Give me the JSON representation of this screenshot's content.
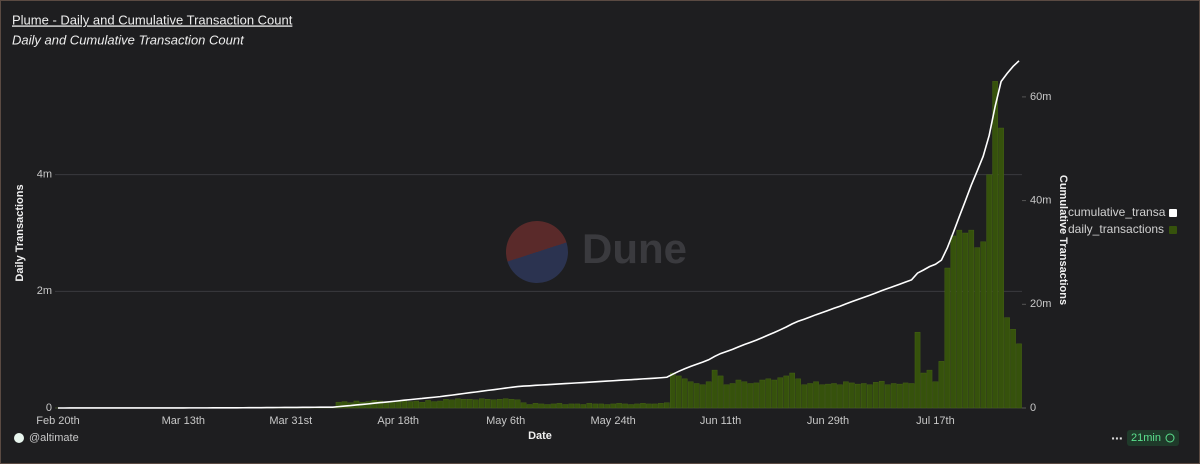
{
  "chart_data": {
    "type": "bar",
    "title": "Plume - Daily and Cumulative Transaction Count",
    "subtitle": "Daily and Cumulative Transaction Count",
    "x_label": "Date",
    "y_label": "Daily Transactions",
    "y2_label": "Cumulative Transactions",
    "watermark": "Dune",
    "categories": [
      "Feb 20th",
      null,
      null,
      null,
      null,
      null,
      null,
      null,
      null,
      null,
      null,
      null,
      null,
      null,
      null,
      null,
      null,
      null,
      null,
      null,
      null,
      "Mar 13th",
      null,
      null,
      null,
      null,
      null,
      null,
      null,
      null,
      null,
      null,
      null,
      null,
      null,
      null,
      null,
      null,
      null,
      "Mar 31st",
      null,
      null,
      null,
      null,
      null,
      null,
      null,
      null,
      null,
      null,
      null,
      null,
      null,
      null,
      null,
      null,
      null,
      "Apr 18th",
      null,
      null,
      null,
      null,
      null,
      null,
      null,
      null,
      null,
      null,
      null,
      null,
      null,
      null,
      null,
      null,
      null,
      "May 6th",
      null,
      null,
      null,
      null,
      null,
      null,
      null,
      null,
      null,
      null,
      null,
      null,
      null,
      null,
      null,
      null,
      null,
      "May 24th",
      null,
      null,
      null,
      null,
      null,
      null,
      null,
      null,
      null,
      null,
      null,
      null,
      null,
      null,
      null,
      null,
      null,
      "Jun 11th",
      null,
      null,
      null,
      null,
      null,
      null,
      null,
      null,
      null,
      null,
      null,
      null,
      null,
      null,
      null,
      null,
      null,
      "Jun 29th",
      null,
      null,
      null,
      null,
      null,
      null,
      null,
      null,
      null,
      null,
      null,
      null,
      null,
      null,
      null,
      null,
      null,
      "Jul 17th",
      null,
      null,
      null,
      null,
      null,
      null,
      null,
      null,
      null,
      null,
      null,
      null,
      null,
      null
    ],
    "series": [
      {
        "name": "cumulative_transa",
        "type": "line",
        "axis": "y2",
        "color": "#ffffff",
        "values": [
          1000,
          2000,
          3000,
          4000,
          5000,
          6000,
          7000,
          8000,
          9000,
          10000,
          11000,
          12000,
          13000,
          14000,
          15000,
          16000,
          17000,
          18000,
          19000,
          20000,
          21000,
          22000,
          23000,
          24000,
          25000,
          26000,
          27000,
          28000,
          29000,
          30000,
          38000,
          46000,
          54000,
          62000,
          70000,
          78000,
          86000,
          94000,
          102000,
          110000,
          118000,
          126000,
          134000,
          142000,
          150000,
          158000,
          166000,
          266000,
          376000,
          466000,
          586000,
          686000,
          796000,
          926000,
          1046000,
          1146000,
          1256000,
          1376000,
          1506000,
          1616000,
          1736000,
          1836000,
          1966000,
          2076000,
          2196000,
          2346000,
          2486000,
          2646000,
          2796000,
          2946000,
          3086000,
          3246000,
          3396000,
          3536000,
          3686000,
          3846000,
          3996000,
          4136000,
          4226000,
          4286000,
          4366000,
          4436000,
          4496000,
          4566000,
          4646000,
          4706000,
          4776000,
          4846000,
          4906000,
          4986000,
          5056000,
          5126000,
          5186000,
          5256000,
          5336000,
          5406000,
          5466000,
          5536000,
          5616000,
          5686000,
          5756000,
          5836000,
          5926000,
          6526000,
          7076000,
          7576000,
          8026000,
          8446000,
          8846000,
          9296000,
          9946000,
          10496000,
          10896000,
          11316000,
          11796000,
          12246000,
          12666000,
          13096000,
          13576000,
          14076000,
          14556000,
          15076000,
          15626000,
          16226000,
          16726000,
          17126000,
          17546000,
          17996000,
          18396000,
          18806000,
          19226000,
          19626000,
          20076000,
          20506000,
          20916000,
          21336000,
          21736000,
          22176000,
          22636000,
          23036000,
          23456000,
          23866000,
          24296000,
          24716000,
          26016000,
          26616000,
          27266000,
          27716000,
          28516000,
          30916000,
          33866000,
          36916000,
          39916000,
          42966000,
          45716000,
          48566000,
          52566000,
          58166000,
          62966000,
          64516000,
          65866000,
          66966000
        ]
      },
      {
        "name": "daily_transactions",
        "type": "bar",
        "color": "#36520c",
        "values": [
          1000,
          1000,
          1000,
          1000,
          1000,
          1000,
          1000,
          1000,
          1000,
          1000,
          1000,
          1000,
          1000,
          1000,
          1000,
          1000,
          1000,
          1000,
          1000,
          1000,
          1000,
          1000,
          1000,
          1000,
          1000,
          1000,
          1000,
          1000,
          1000,
          1000,
          8000,
          8000,
          8000,
          8000,
          8000,
          8000,
          8000,
          8000,
          8000,
          8000,
          8000,
          8000,
          8000,
          8000,
          8000,
          8000,
          8000,
          100000,
          110000,
          90000,
          120000,
          100000,
          110000,
          130000,
          120000,
          100000,
          110000,
          120000,
          130000,
          110000,
          120000,
          100000,
          130000,
          110000,
          120000,
          150000,
          140000,
          160000,
          150000,
          150000,
          140000,
          160000,
          150000,
          140000,
          150000,
          160000,
          150000,
          140000,
          90000,
          60000,
          80000,
          70000,
          60000,
          70000,
          80000,
          60000,
          70000,
          70000,
          60000,
          80000,
          70000,
          70000,
          60000,
          70000,
          80000,
          70000,
          60000,
          70000,
          80000,
          70000,
          70000,
          80000,
          90000,
          600000,
          550000,
          500000,
          450000,
          420000,
          400000,
          450000,
          650000,
          550000,
          400000,
          420000,
          480000,
          450000,
          420000,
          430000,
          480000,
          500000,
          480000,
          520000,
          550000,
          600000,
          500000,
          400000,
          420000,
          450000,
          400000,
          410000,
          420000,
          400000,
          450000,
          430000,
          410000,
          420000,
          400000,
          440000,
          460000,
          400000,
          420000,
          410000,
          430000,
          420000,
          1300000,
          600000,
          650000,
          450000,
          800000,
          2400000,
          2950000,
          3050000,
          3000000,
          3050000,
          2750000,
          2850000,
          4000000,
          5600000,
          4800000,
          1550000,
          1350000,
          1100000
        ]
      }
    ],
    "ylim": [
      0,
      6000000
    ],
    "yticks": [
      0,
      {
        "value": 2000000,
        "label": "2m"
      },
      {
        "value": 4000000,
        "label": "4m"
      }
    ],
    "y2lim": [
      0,
      67500000
    ],
    "y2ticks": [
      0,
      {
        "value": 20000000,
        "label": "20m"
      },
      {
        "value": 40000000,
        "label": "40m"
      },
      {
        "value": 60000000,
        "label": "60m"
      }
    ],
    "grid": true,
    "legend": "right",
    "footer": {
      "author": "@altimate",
      "menu": "...",
      "age": "21min"
    }
  }
}
